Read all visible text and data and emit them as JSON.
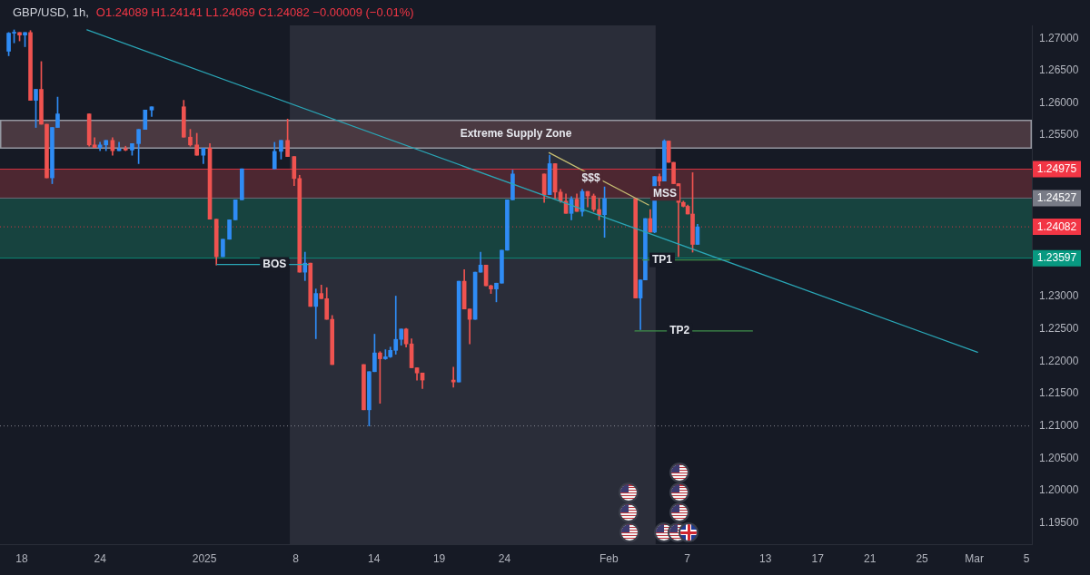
{
  "chart_data": {
    "type": "candlestick",
    "title": "GBP/USD, 1h,",
    "subtitle": "O1.24089 H1.24141 L1.24069 C1.24082 −0.00009 (−0.01%)",
    "xlim": [
      "2024-12-16T08:00",
      "2025-03-05T10:00"
    ],
    "xticks": [
      {
        "value": "2024-12-18",
        "label": "18"
      },
      {
        "value": "2024-12-24",
        "label": "24"
      },
      {
        "value": "2025-01-01",
        "label": "2025"
      },
      {
        "value": "2025-01-08",
        "label": "8"
      },
      {
        "value": "2025-01-14",
        "label": "14"
      },
      {
        "value": "2025-01-19",
        "label": "19"
      },
      {
        "value": "2025-01-24",
        "label": "24"
      },
      {
        "value": "2025-02-01",
        "label": "Feb"
      },
      {
        "value": "2025-02-07",
        "label": "7"
      },
      {
        "value": "2025-02-13",
        "label": "13"
      },
      {
        "value": "2025-02-17",
        "label": "17"
      },
      {
        "value": "2025-02-21",
        "label": "21"
      },
      {
        "value": "2025-02-25",
        "label": "25"
      },
      {
        "value": "2025-03-01",
        "label": "Mar"
      },
      {
        "value": "2025-03-05",
        "label": "5"
      }
    ],
    "ylim": [
      1.1917,
      1.272
    ],
    "yticks": [
      {
        "value": 1.27,
        "label": "1.27000"
      },
      {
        "value": 1.265,
        "label": "1.26500"
      },
      {
        "value": 1.26,
        "label": "1.26000"
      },
      {
        "value": 1.255,
        "label": "1.25500"
      },
      {
        "value": 1.25,
        "label": null
      },
      {
        "value": 1.245,
        "label": null
      },
      {
        "value": 1.23,
        "label": "1.23000"
      },
      {
        "value": 1.225,
        "label": "1.22500"
      },
      {
        "value": 1.22,
        "label": "1.22000"
      },
      {
        "value": 1.215,
        "label": "1.21500"
      },
      {
        "value": 1.21,
        "label": "1.21000"
      },
      {
        "value": 1.205,
        "label": "1.20500"
      },
      {
        "value": 1.2,
        "label": "1.20000"
      },
      {
        "value": 1.195,
        "label": "1.19500"
      }
    ],
    "series": [
      {
        "x": [
          "2024-12-17T00:00",
          "2024-12-17T10:00",
          "2024-12-17T20:00",
          "2024-12-18T06:00",
          "2024-12-18T16:00",
          "2024-12-19T02:00",
          "2024-12-19T12:00",
          "2024-12-19T22:00",
          "2024-12-20T08:00",
          "2024-12-20T18:00",
          "2024-12-23T04:00",
          "2024-12-23T14:00",
          "2024-12-24T00:00",
          "2024-12-24T11:00",
          "2024-12-24T23:00",
          "2024-12-25T11:00",
          "2024-12-25T23:00",
          "2024-12-26T11:00",
          "2024-12-26T23:00",
          "2024-12-27T11:00",
          "2024-12-27T23:00",
          "2024-12-30T10:00",
          "2024-12-30T22:00",
          "2024-12-31T10:00",
          "2024-12-31T22:00",
          "2025-01-01T10:00",
          "2025-01-01T22:00",
          "2025-01-02T10:00",
          "2025-01-02T22:00",
          "2025-01-03T09:00",
          "2025-01-03T21:00",
          "2025-01-06T09:00",
          "2025-01-06T21:00",
          "2025-01-07T09:00",
          "2025-01-07T21:00",
          "2025-01-08T07:00",
          "2025-01-08T17:00",
          "2025-01-09T03:00",
          "2025-01-09T13:00",
          "2025-01-09T23:00",
          "2025-01-10T09:00",
          "2025-01-10T19:00",
          "2025-01-13T05:00",
          "2025-01-13T15:00",
          "2025-01-14T01:00",
          "2025-01-14T11:00",
          "2025-01-14T21:00",
          "2025-01-15T06:00",
          "2025-01-15T16:00",
          "2025-01-16T02:00",
          "2025-01-16T11:00",
          "2025-01-16T21:00",
          "2025-01-17T07:00",
          "2025-01-17T17:00",
          "2025-01-20T02:00",
          "2025-01-20T12:00",
          "2025-01-20T22:00",
          "2025-01-21T08:00",
          "2025-01-21T18:00",
          "2025-01-22T04:00",
          "2025-01-22T14:00",
          "2025-01-22T23:00",
          "2025-01-23T09:00",
          "2025-01-23T19:00",
          "2025-01-24T05:00",
          "2025-01-24T15:00",
          "2025-01-27T01:00",
          "2025-01-27T11:00",
          "2025-01-27T21:00",
          "2025-01-28T07:00",
          "2025-01-28T17:00",
          "2025-01-29T03:00",
          "2025-01-29T13:00",
          "2025-01-29T23:00",
          "2025-01-30T09:00",
          "2025-01-30T20:00",
          "2025-01-31T06:00",
          "2025-01-31T16:00",
          "2025-02-03T01:00",
          "2025-02-03T10:00",
          "2025-02-03T19:00",
          "2025-02-04T04:00",
          "2025-02-04T12:00",
          "2025-02-04T21:00",
          "2025-02-05T06:00",
          "2025-02-05T14:00",
          "2025-02-05T23:00",
          "2025-02-06T08:00",
          "2025-02-06T17:00",
          "2025-02-07T01:00",
          "2025-02-07T10:00",
          "2025-02-07T19:00"
        ],
        "ohlc": [
          [
            1.268,
            1.2709,
            1.2673,
            1.2708
          ],
          [
            1.2708,
            1.2713,
            1.2693,
            1.2709
          ],
          [
            1.2709,
            1.2709,
            1.2696,
            1.2705
          ],
          [
            1.2705,
            1.2709,
            1.2687,
            1.2709
          ],
          [
            1.2709,
            1.2712,
            1.2604,
            1.2604
          ],
          [
            1.2604,
            1.2621,
            1.2562,
            1.2621
          ],
          [
            1.2621,
            1.2664,
            1.2567,
            1.2567
          ],
          [
            1.2567,
            1.2567,
            1.2484,
            1.2484
          ],
          [
            1.2484,
            1.2562,
            1.2475,
            1.2562
          ],
          [
            1.2562,
            1.2609,
            1.2562,
            1.2583
          ],
          [
            1.2583,
            1.2583,
            1.2533,
            1.2535
          ],
          [
            1.2535,
            1.2546,
            1.2531,
            1.2531
          ],
          [
            1.2531,
            1.2539,
            1.2526,
            1.2535
          ],
          [
            1.2535,
            1.2542,
            1.2526,
            1.2542
          ],
          [
            1.2542,
            1.2546,
            1.2519,
            1.2526
          ],
          [
            1.2526,
            1.2539,
            1.2526,
            1.2529
          ],
          [
            1.2529,
            1.2533,
            1.2526,
            1.2527
          ],
          [
            1.2527,
            1.2537,
            1.2519,
            1.2537
          ],
          [
            1.2537,
            1.2559,
            1.2506,
            1.2559
          ],
          [
            1.2559,
            1.2589,
            1.2559,
            1.2589
          ],
          [
            1.2589,
            1.2594,
            1.2579,
            1.2594
          ],
          [
            1.2594,
            1.2604,
            1.2547,
            1.2547
          ],
          [
            1.2547,
            1.2559,
            1.2533,
            1.2535
          ],
          [
            1.2535,
            1.2553,
            1.2519,
            1.2519
          ],
          [
            1.2519,
            1.253,
            1.2506,
            1.253
          ],
          [
            1.253,
            1.2537,
            1.242,
            1.242
          ],
          [
            1.242,
            1.242,
            1.2349,
            1.2362
          ],
          [
            1.2362,
            1.2389,
            1.2362,
            1.2389
          ],
          [
            1.2389,
            1.2419,
            1.2389,
            1.2419
          ],
          [
            1.2419,
            1.245,
            1.2419,
            1.245
          ],
          [
            1.245,
            1.2498,
            1.245,
            1.2498
          ],
          [
            1.2498,
            1.2539,
            1.2498,
            1.2525
          ],
          [
            1.2525,
            1.2542,
            1.2513,
            1.2542
          ],
          [
            1.2542,
            1.2575,
            1.2517,
            1.2517
          ],
          [
            1.2517,
            1.2517,
            1.2472,
            1.2483
          ],
          [
            1.2483,
            1.2488,
            1.2338,
            1.2338
          ],
          [
            1.2338,
            1.2369,
            1.2325,
            1.2352
          ],
          [
            1.2352,
            1.2352,
            1.2285,
            1.2285
          ],
          [
            1.2285,
            1.2312,
            1.2235,
            1.2305
          ],
          [
            1.2305,
            1.2318,
            1.2297,
            1.2297
          ],
          [
            1.2297,
            1.2314,
            1.2265,
            1.2265
          ],
          [
            1.2265,
            1.2271,
            1.2195,
            1.2195
          ],
          [
            1.2195,
            1.2195,
            1.2125,
            1.2125
          ],
          [
            1.2125,
            1.2184,
            1.21,
            1.2184
          ],
          [
            1.2184,
            1.2242,
            1.2184,
            1.2213
          ],
          [
            1.2213,
            1.2215,
            1.2135,
            1.2204
          ],
          [
            1.2204,
            1.2218,
            1.2203,
            1.2207
          ],
          [
            1.2207,
            1.2222,
            1.2206,
            1.2217
          ],
          [
            1.2217,
            1.2301,
            1.2211,
            1.2234
          ],
          [
            1.2234,
            1.225,
            1.2225,
            1.225
          ],
          [
            1.225,
            1.2251,
            1.2222,
            1.2227
          ],
          [
            1.2227,
            1.2235,
            1.219,
            1.219
          ],
          [
            1.219,
            1.219,
            1.2171,
            1.2182
          ],
          [
            1.2182,
            1.2182,
            1.2158,
            1.2171
          ],
          [
            1.2171,
            1.2191,
            1.216,
            1.2168
          ],
          [
            1.2168,
            1.2324,
            1.2168,
            1.2324
          ],
          [
            1.2324,
            1.2342,
            1.2281,
            1.2281
          ],
          [
            1.2281,
            1.2281,
            1.2227,
            1.2265
          ],
          [
            1.2265,
            1.2338,
            1.2265,
            1.2338
          ],
          [
            1.2338,
            1.2369,
            1.2338,
            1.2349
          ],
          [
            1.2349,
            1.2349,
            1.2317,
            1.2317
          ],
          [
            1.2317,
            1.2318,
            1.2305,
            1.2312
          ],
          [
            1.2312,
            1.2321,
            1.2292,
            1.2321
          ],
          [
            1.2321,
            1.2372,
            1.2321,
            1.2372
          ],
          [
            1.2372,
            1.245,
            1.2372,
            1.245
          ],
          [
            1.245,
            1.2496,
            1.245,
            1.249
          ],
          [
            1.249,
            1.249,
            1.2446,
            1.2458
          ],
          [
            1.2458,
            1.2519,
            1.2458,
            1.2506
          ],
          [
            1.2506,
            1.2506,
            1.2452,
            1.2462
          ],
          [
            1.2462,
            1.2466,
            1.2446,
            1.2448
          ],
          [
            1.2448,
            1.2459,
            1.2429,
            1.2429
          ],
          [
            1.2429,
            1.2455,
            1.2419,
            1.2451
          ],
          [
            1.2451,
            1.2459,
            1.2432,
            1.2432
          ],
          [
            1.2432,
            1.2466,
            1.2425,
            1.2463
          ],
          [
            1.2463,
            1.2463,
            1.2439,
            1.2456
          ],
          [
            1.2456,
            1.2459,
            1.2432,
            1.2435
          ],
          [
            1.2435,
            1.2452,
            1.2419,
            1.2427
          ],
          [
            1.2427,
            1.247,
            1.2392,
            1.2452
          ],
          [
            1.2452,
            1.2452,
            1.2298,
            1.2298
          ],
          [
            1.2298,
            1.2326,
            1.2249,
            1.2326
          ],
          [
            1.2326,
            1.2421,
            1.2326,
            1.2421
          ],
          [
            1.2421,
            1.2435,
            1.24,
            1.24
          ],
          [
            1.24,
            1.2486,
            1.2399,
            1.2486
          ],
          [
            1.2486,
            1.249,
            1.2472,
            1.2479
          ],
          [
            1.2479,
            1.2543,
            1.2479,
            1.2541
          ],
          [
            1.2541,
            1.2541,
            1.2508,
            1.2508
          ],
          [
            1.2508,
            1.2508,
            1.2475,
            1.2475
          ],
          [
            1.2475,
            1.2475,
            1.2362,
            1.2446
          ],
          [
            1.2446,
            1.2448,
            1.2439,
            1.244
          ],
          [
            1.244,
            1.2442,
            1.2428,
            1.2428
          ],
          [
            1.2428,
            1.2492,
            1.2369,
            1.2381
          ],
          [
            1.2381,
            1.2412,
            1.2381,
            1.24082
          ]
        ],
        "colors": [
          "#2f8cf5",
          "#2f8cf5",
          "#ef5350",
          "#2f8cf5",
          "#ef5350",
          "#2f8cf5",
          "#ef5350",
          "#ef5350",
          "#2f8cf5",
          "#2f8cf5",
          "#ef5350",
          "#ef5350",
          "#2f8cf5",
          "#2f8cf5",
          "#ef5350",
          "#2f8cf5",
          "#ef5350",
          "#2f8cf5",
          "#2f8cf5",
          "#2f8cf5",
          "#2f8cf5",
          "#ef5350",
          "#ef5350",
          "#ef5350",
          "#2f8cf5",
          "#ef5350",
          "#ef5350",
          "#2f8cf5",
          "#2f8cf5",
          "#2f8cf5",
          "#2f8cf5",
          "#2f8cf5",
          "#2f8cf5",
          "#ef5350",
          "#ef5350",
          "#ef5350",
          "#2f8cf5",
          "#ef5350",
          "#2f8cf5",
          "#ef5350",
          "#ef5350",
          "#ef5350",
          "#ef5350",
          "#2f8cf5",
          "#2f8cf5",
          "#ef5350",
          "#2f8cf5",
          "#2f8cf5",
          "#2f8cf5",
          "#2f8cf5",
          "#ef5350",
          "#ef5350",
          "#ef5350",
          "#ef5350",
          "#ef5350",
          "#2f8cf5",
          "#ef5350",
          "#ef5350",
          "#2f8cf5",
          "#2f8cf5",
          "#ef5350",
          "#ef5350",
          "#2f8cf5",
          "#2f8cf5",
          "#2f8cf5",
          "#2f8cf5",
          "#ef5350",
          "#2f8cf5",
          "#ef5350",
          "#ef5350",
          "#ef5350",
          "#2f8cf5",
          "#ef5350",
          "#2f8cf5",
          "#ef5350",
          "#ef5350",
          "#ef5350",
          "#2f8cf5",
          "#ef5350",
          "#2f8cf5",
          "#2f8cf5",
          "#ef5350",
          "#2f8cf5",
          "#ef5350",
          "#2f8cf5",
          "#ef5350",
          "#ef5350",
          "#ef5350",
          "#ef5350",
          "#ef5350",
          "#ef5350",
          "#2f8cf5"
        ]
      },
      {
        "type": "line",
        "color": "#2aa6b6",
        "x": [
          "2024-12-23T00:00",
          "2025-03-01T06:00"
        ],
        "values": [
          1.2713,
          1.2214
        ]
      },
      {
        "type": "line",
        "color": "#c5bd72",
        "x": [
          "2025-01-27T10:00",
          "2025-02-04T01:00"
        ],
        "values": [
          1.2523,
          1.2442
        ]
      },
      {
        "type": "line",
        "color": "#2aa6b6",
        "x": [
          "2025-01-01T23:00",
          "2025-01-09T00:00"
        ],
        "values": [
          1.235,
          1.235
        ]
      },
      {
        "type": "line",
        "color": "#3f8f4a",
        "x": [
          "2025-02-03T14:00",
          "2025-02-10T06:00"
        ],
        "values": [
          1.2357,
          1.2357
        ]
      },
      {
        "type": "line",
        "color": "#3f8f4a",
        "x": [
          "2025-02-03T00:00",
          "2025-02-12T00:00"
        ],
        "values": [
          1.2247,
          1.2247
        ]
      }
    ],
    "bands": [
      {
        "axis": "x",
        "from": "2025-01-07T13:00",
        "to": "2025-02-04T14:00",
        "color": "#2a2d39"
      },
      {
        "axis": "y",
        "from": 1.253,
        "to": 1.2573,
        "label": "Extreme Supply Zone",
        "color": "#4a3941"
      },
      {
        "axis": "y",
        "from": 1.24527,
        "to": 1.24975,
        "color": "#4d2731"
      },
      {
        "axis": "y",
        "from": 1.23597,
        "to": 1.24527,
        "color": "#17433f"
      }
    ],
    "ref_lines": [
      {
        "axis": "y",
        "value": 1.24975,
        "label": "1.24975",
        "color": "#f23645"
      },
      {
        "axis": "y",
        "value": 1.24527,
        "label": "1.24527",
        "color": "#787b86"
      },
      {
        "axis": "y",
        "value": 1.24082,
        "label": "1.24082",
        "color": "#f23645",
        "line_style": "dotted"
      },
      {
        "axis": "y",
        "value": 1.23597,
        "label": "1.23597",
        "color": "#089981"
      },
      {
        "axis": "y",
        "value": 1.21,
        "color": "#9598a1",
        "line_style": "dotted"
      }
    ],
    "annotations": [
      {
        "text": "BOS",
        "x": "2025-01-06T09:00",
        "y": 1.235
      },
      {
        "text": "TP1",
        "x": "2025-02-05T02:00",
        "y": 1.2357
      },
      {
        "text": "TP2",
        "x": "2025-02-06T10:00",
        "y": 1.2247
      },
      {
        "text": "$$$",
        "x": "2025-01-30T15:00",
        "y": 1.2483
      },
      {
        "text": "MSS",
        "x": "2025-02-05T07:00",
        "y": 1.246
      }
    ]
  }
}
